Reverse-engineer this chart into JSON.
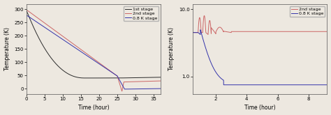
{
  "left": {
    "ylabel": "Temperature (K)",
    "xlabel": "Time (hour)",
    "xlim": [
      0,
      37
    ],
    "ylim": [
      -20,
      320
    ],
    "yticks": [
      0,
      50,
      100,
      150,
      200,
      250,
      300
    ],
    "xticks": [
      0,
      5,
      10,
      15,
      20,
      25,
      30,
      35
    ],
    "legend": [
      "1st stage",
      "2nd stage",
      "0.8 K stage"
    ],
    "colors": [
      "#2b2b2b",
      "#cc6666",
      "#3333aa"
    ],
    "bg_color": "#ede8e0"
  },
  "right": {
    "ylabel": "Temperature (K)",
    "xlabel": "Time (hour)",
    "xlim": [
      0.5,
      9.2
    ],
    "ylim_log": [
      0.55,
      12
    ],
    "xticks": [
      2,
      4,
      6,
      8
    ],
    "yticks_log": [
      1,
      10
    ],
    "legend": [
      "2nd stage",
      "0.8 K stage"
    ],
    "colors": [
      "#cc6666",
      "#3333aa"
    ],
    "bg_color": "#ede8e0"
  }
}
